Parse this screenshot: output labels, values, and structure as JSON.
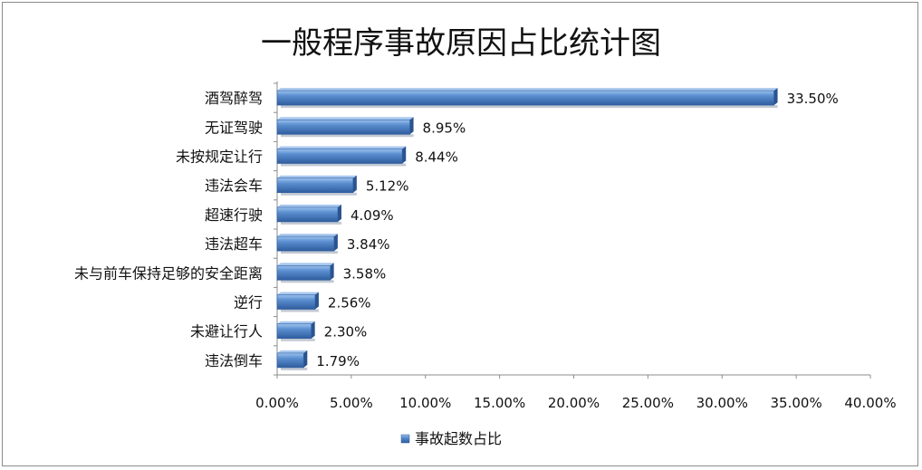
{
  "chart_data": {
    "type": "bar",
    "orientation": "horizontal",
    "title": "一般程序事故原因占比统计图",
    "categories": [
      "酒驾醉驾",
      "无证驾驶",
      "未按规定让行",
      "违法会车",
      "超速行驶",
      "违法超车",
      "未与前车保持足够的安全距离",
      "逆行",
      "未避让行人",
      "违法倒车"
    ],
    "series": [
      {
        "name": "事故起数占比",
        "values": [
          33.5,
          8.95,
          8.44,
          5.12,
          4.09,
          3.84,
          3.58,
          2.56,
          2.3,
          1.79
        ],
        "labels": [
          "33.50%",
          "8.95%",
          "8.44%",
          "5.12%",
          "4.09%",
          "3.84%",
          "3.58%",
          "2.56%",
          "2.30%",
          "1.79%"
        ],
        "color": "#4a7ebb"
      }
    ],
    "xlim": [
      0,
      40
    ],
    "x_ticks": [
      "0.00%",
      "5.00%",
      "10.00%",
      "15.00%",
      "20.00%",
      "25.00%",
      "30.00%",
      "35.00%",
      "40.00%"
    ],
    "x_tick_values": [
      0,
      5,
      10,
      15,
      20,
      25,
      30,
      35,
      40
    ],
    "grid": false,
    "legend": {
      "position": "bottom",
      "entries": [
        "事故起数占比"
      ]
    }
  }
}
